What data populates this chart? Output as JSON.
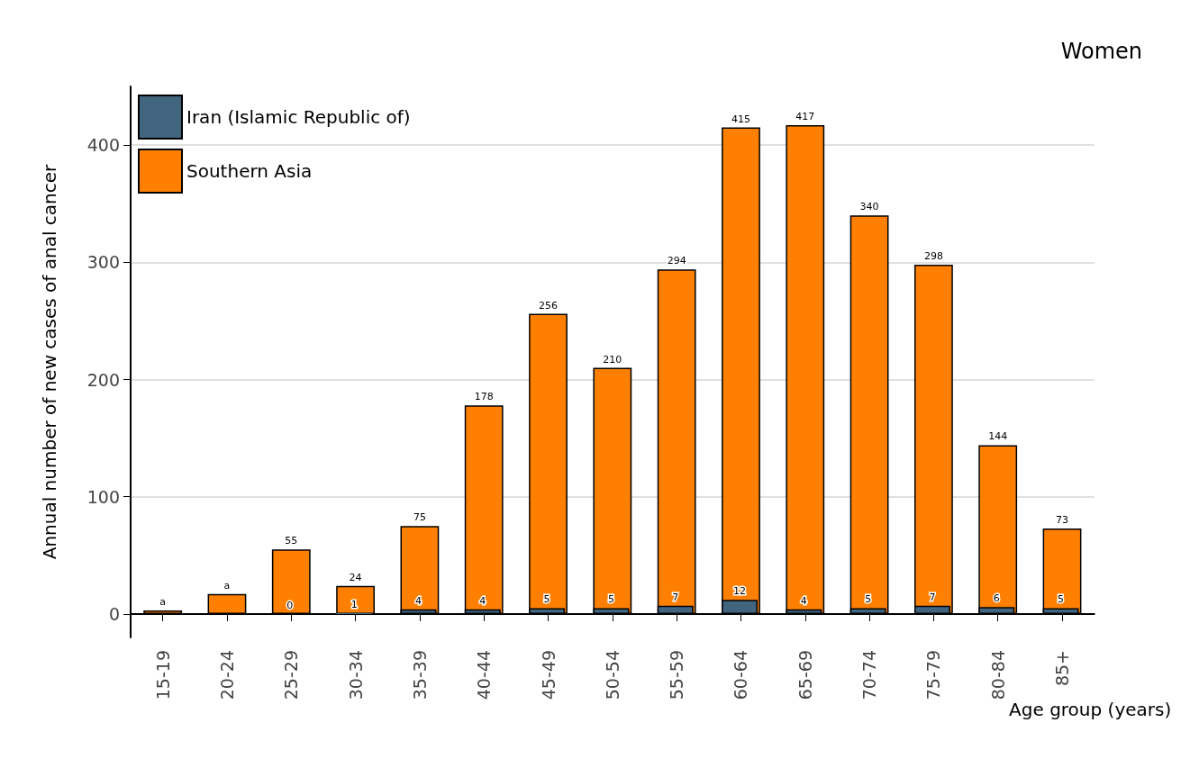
{
  "chart_data": {
    "type": "bar",
    "title": "Women",
    "xlabel": "Age group (years)",
    "ylabel": "Annual number of new cases of anal cancer",
    "categories": [
      "15-19",
      "20-24",
      "25-29",
      "30-34",
      "35-39",
      "40-44",
      "45-49",
      "50-54",
      "55-59",
      "60-64",
      "65-69",
      "70-74",
      "75-79",
      "80-84",
      "85+"
    ],
    "series": [
      {
        "name": "Iran (Islamic Republic of)",
        "color": "#41647f",
        "values": [
          null,
          null,
          0,
          1,
          4,
          4,
          5,
          5,
          7,
          12,
          4,
          5,
          7,
          6,
          5
        ],
        "value_labels": [
          null,
          null,
          "0",
          "1",
          "4",
          "4",
          "5",
          "5",
          "7",
          "12",
          "4",
          "5",
          "7",
          "6",
          "5"
        ]
      },
      {
        "name": "Southern Asia",
        "color": "#ff8000",
        "values": [
          3,
          17,
          55,
          24,
          75,
          178,
          256,
          210,
          294,
          415,
          417,
          340,
          298,
          144,
          73
        ],
        "value_labels": [
          "a",
          "a",
          "55",
          "24",
          "75",
          "178",
          "256",
          "210",
          "294",
          "415",
          "417",
          "340",
          "298",
          "144",
          "73"
        ]
      }
    ],
    "ylim": [
      -20,
      450
    ],
    "yticks": [
      0,
      100,
      200,
      300,
      400
    ],
    "grid": "y",
    "legend": "top left"
  }
}
